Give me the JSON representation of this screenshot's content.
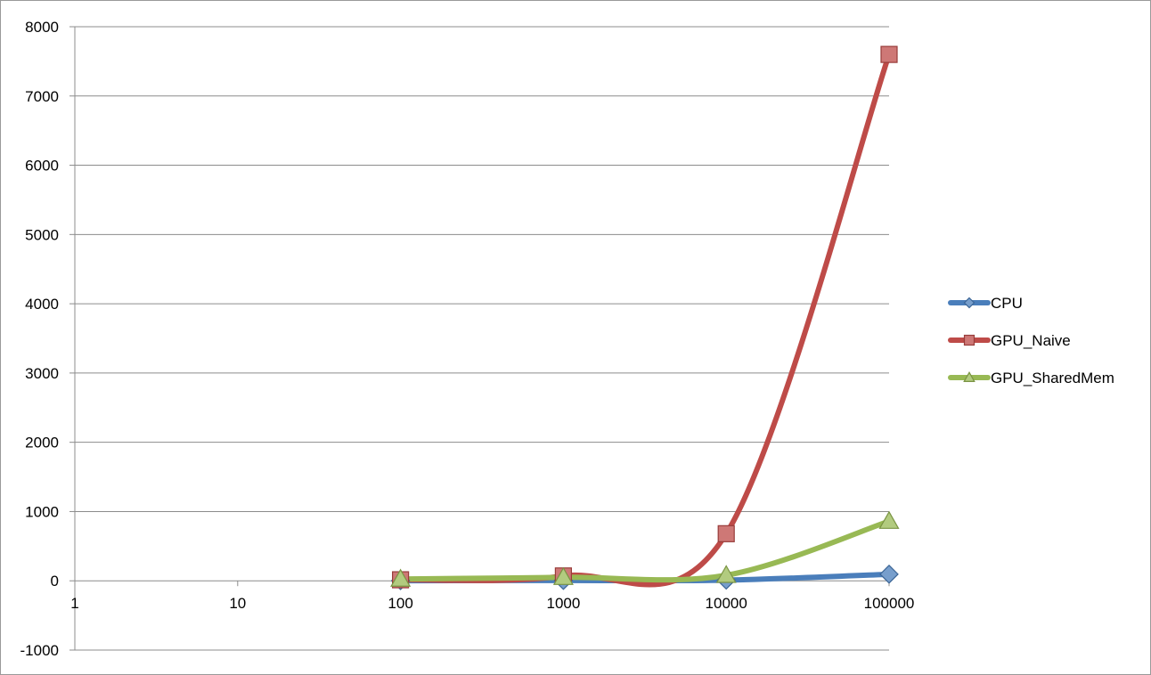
{
  "chart_data": {
    "type": "line",
    "title": "",
    "xlabel": "",
    "ylabel": "",
    "x_scale": "log",
    "xlim": [
      1,
      100000
    ],
    "ylim": [
      -1000,
      8000
    ],
    "x_ticks": [
      1,
      10,
      100,
      1000,
      10000,
      100000
    ],
    "x_tick_labels": [
      "1",
      "10",
      "100",
      "1000",
      "10000",
      "100000"
    ],
    "y_ticks": [
      -1000,
      0,
      1000,
      2000,
      3000,
      4000,
      5000,
      6000,
      7000,
      8000
    ],
    "y_tick_labels": [
      "-1000",
      "0",
      "1000",
      "2000",
      "3000",
      "4000",
      "5000",
      "6000",
      "7000",
      "8000"
    ],
    "grid": "horizontal",
    "legend_position": "right",
    "x": [
      100,
      1000,
      10000,
      100000
    ],
    "series": [
      {
        "name": "CPU",
        "values": [
          2,
          5,
          10,
          95
        ],
        "color": "#4a7ebb",
        "marker": "diamond"
      },
      {
        "name": "GPU_Naive",
        "values": [
          15,
          70,
          680,
          7600
        ],
        "color": "#be4b48",
        "marker": "square"
      },
      {
        "name": "GPU_SharedMem",
        "values": [
          25,
          50,
          80,
          860
        ],
        "color": "#98b954",
        "marker": "triangle"
      }
    ]
  }
}
